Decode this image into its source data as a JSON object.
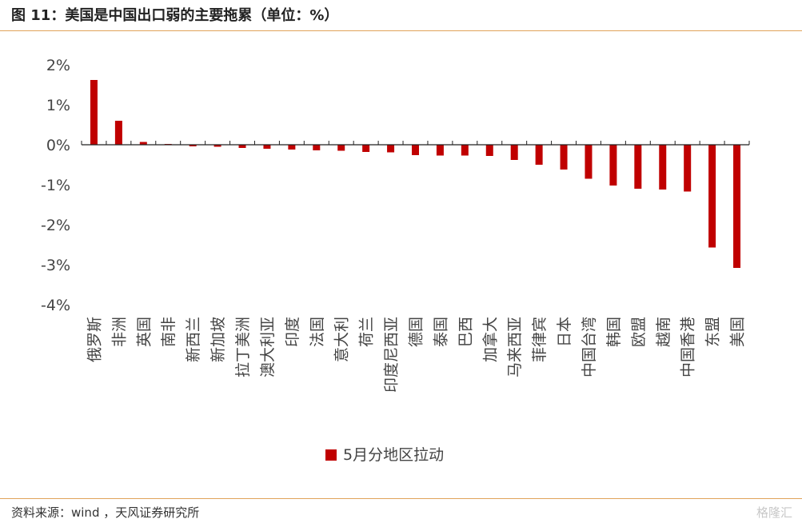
{
  "header": {
    "title": "图 11：美国是中国出口弱的主要拖累（单位：%）"
  },
  "footer": {
    "source": "资料来源：wind ，天风证券研究所"
  },
  "watermark": {
    "text": "格隆汇"
  },
  "colors": {
    "bar": "#c00000",
    "rule": "#e0a35a",
    "axis": "#222222"
  },
  "chart_data": {
    "type": "bar",
    "title": "",
    "xlabel": "",
    "ylabel": "",
    "ylim": [
      -4,
      2
    ],
    "yticks": [
      2,
      1,
      0,
      -1,
      -2,
      -3,
      -4
    ],
    "ytick_labels": [
      "2%",
      "1%",
      "0%",
      "-1%",
      "-2%",
      "-3%",
      "-4%"
    ],
    "grid": false,
    "legend": {
      "position": "bottom-center",
      "entries": [
        "5月分地区拉动"
      ]
    },
    "categories": [
      "俄罗斯",
      "非洲",
      "英国",
      "南非",
      "新西兰",
      "新加坡",
      "拉丁美洲",
      "澳大利亚",
      "印度",
      "法国",
      "意大利",
      "荷兰",
      "印度尼西亚",
      "德国",
      "泰国",
      "巴西",
      "加拿大",
      "马来西亚",
      "菲律宾",
      "日本",
      "中国台湾",
      "韩国",
      "欧盟",
      "越南",
      "中国香港",
      "东盟",
      "美国"
    ],
    "series": [
      {
        "name": "5月分地区拉动",
        "values": [
          1.62,
          0.6,
          0.07,
          0.02,
          -0.04,
          -0.05,
          -0.08,
          -0.1,
          -0.12,
          -0.14,
          -0.15,
          -0.18,
          -0.19,
          -0.26,
          -0.27,
          -0.27,
          -0.28,
          -0.38,
          -0.5,
          -0.62,
          -0.85,
          -1.02,
          -1.1,
          -1.12,
          -1.17,
          -2.57,
          -3.08
        ]
      }
    ]
  }
}
